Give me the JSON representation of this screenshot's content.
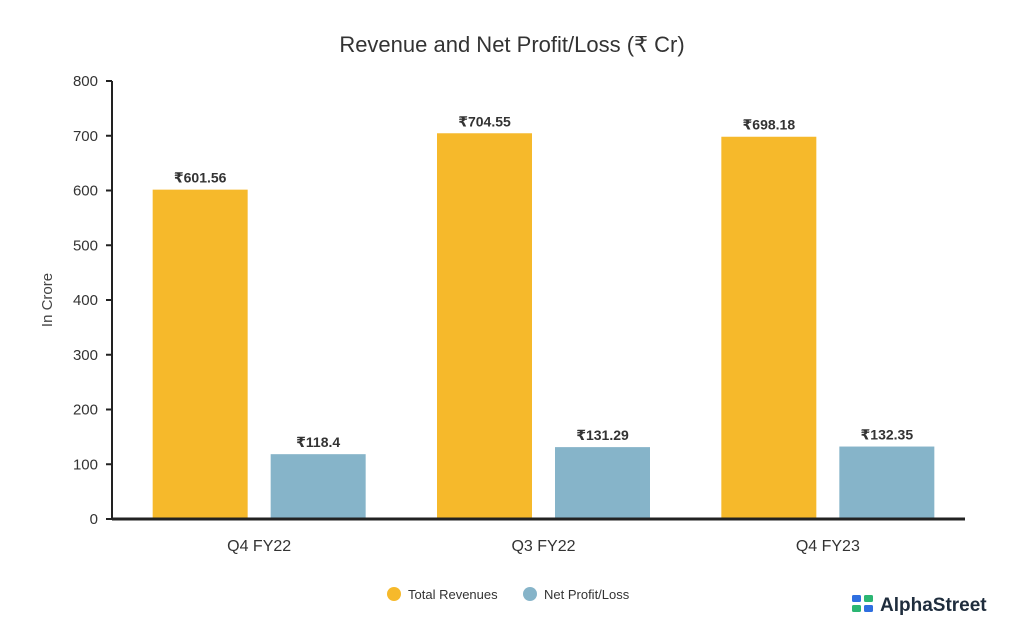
{
  "chart_data": {
    "type": "bar",
    "title": "Revenue and Net Profit/Loss (₹ Cr)",
    "xlabel": "",
    "ylabel": "In Crore",
    "ylim": [
      0,
      800
    ],
    "yticks": [
      0,
      100,
      200,
      300,
      400,
      500,
      600,
      700,
      800
    ],
    "categories": [
      "Q4 FY22",
      "Q3 FY22",
      "Q4 FY23"
    ],
    "series": [
      {
        "name": "Total Revenues",
        "color": "#F6B92B",
        "values": [
          601.56,
          704.55,
          698.18
        ],
        "labels": [
          "₹601.56",
          "₹704.55",
          "₹698.18"
        ]
      },
      {
        "name": "Net Profit/Loss",
        "color": "#86B4C9",
        "values": [
          118.4,
          131.29,
          132.35
        ],
        "labels": [
          "₹118.4",
          "₹131.29",
          "₹132.35"
        ]
      }
    ],
    "legend_position": "bottom-center"
  },
  "brand": {
    "name": "AlphaStreet",
    "logo_icon": "alphastreet-logo-icon"
  }
}
